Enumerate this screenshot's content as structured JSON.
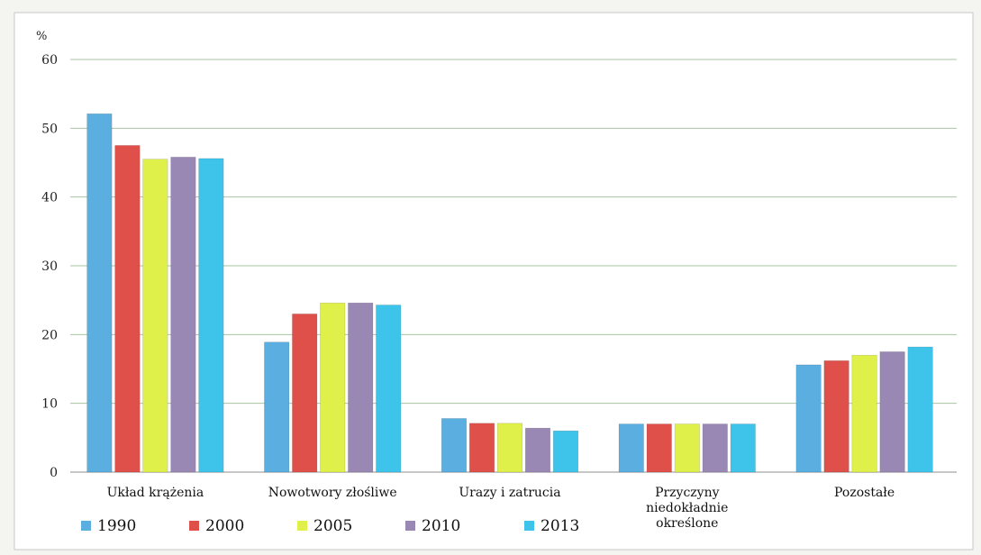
{
  "chart_data": {
    "type": "bar",
    "ylabel": "%",
    "ylim": [
      0,
      60
    ],
    "yticks": [
      0,
      10,
      20,
      30,
      40,
      50,
      60
    ],
    "grid": true,
    "legend_position": "bottom",
    "categories": [
      [
        "Układ krążenia"
      ],
      [
        "Nowotwory złośliwe"
      ],
      [
        "Urazy i zatrucia"
      ],
      [
        "Przyczyny",
        "niedokładnie",
        "określone"
      ],
      [
        "Pozostałe"
      ]
    ],
    "series": [
      {
        "name": "1990",
        "color": "#5aaee0",
        "values": [
          52.1,
          18.9,
          7.8,
          7.0,
          15.6
        ]
      },
      {
        "name": "2000",
        "color": "#e0504a",
        "values": [
          47.5,
          23.0,
          7.1,
          7.0,
          16.2
        ]
      },
      {
        "name": "2005",
        "color": "#dff04a",
        "values": [
          45.5,
          24.6,
          7.1,
          7.0,
          17.0
        ]
      },
      {
        "name": "2010",
        "color": "#9a88b4",
        "values": [
          45.8,
          24.6,
          6.4,
          7.0,
          17.5
        ]
      },
      {
        "name": "2013",
        "color": "#3ec4ea",
        "values": [
          45.6,
          24.3,
          6.0,
          7.0,
          18.2
        ]
      }
    ]
  }
}
